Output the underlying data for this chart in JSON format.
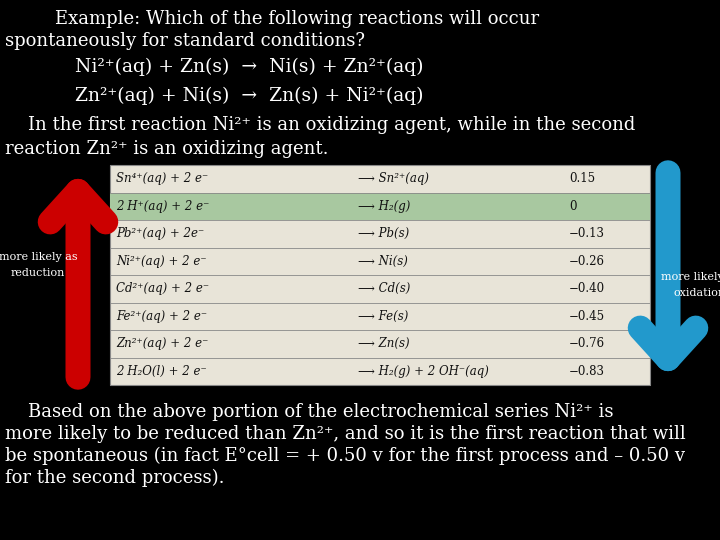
{
  "bg_color": "#000000",
  "text_color": "#ffffff",
  "title_line1": "Example: Which of the following reactions will occur",
  "title_line2": "spontaneously for standard conditions?",
  "reaction1": "Ni²⁺(aq) + Zn(s)  →  Ni(s) + Zn²⁺(aq)",
  "reaction2": "Zn²⁺(aq) + Ni(s)  →  Zn(s) + Ni²⁺(aq)",
  "middle_text_line1": "    In the first reaction Ni²⁺ is an oxidizing agent, while in the second",
  "middle_text_line2": "reaction Zn²⁺ is an oxidizing agent.",
  "table_rows": [
    [
      "Sn⁴⁺(aq) + 2 e⁻",
      "⟶ Sn²⁺(aq)",
      "0.15"
    ],
    [
      "2 H⁺(aq) + 2 e⁻",
      "⟶ H₂(g)",
      "0"
    ],
    [
      "Pb²⁺(aq) + 2e⁻",
      "⟶ Pb(s)",
      "−0.13"
    ],
    [
      "Ni²⁺(aq) + 2 e⁻",
      "⟶ Ni(s)",
      "−0.26"
    ],
    [
      "Cd²⁺(aq) + 2 e⁻",
      "⟶ Cd(s)",
      "−0.40"
    ],
    [
      "Fe²⁺(aq) + 2 e⁻",
      "⟶ Fe(s)",
      "−0.45"
    ],
    [
      "Zn²⁺(aq) + 2 e⁻",
      "⟶ Zn(s)",
      "−0.76"
    ],
    [
      "2 H₂O(l) + 2 e⁻",
      "⟶ H₂(g) + 2 OH⁻(aq)",
      "−0.83"
    ]
  ],
  "highlighted_row": 1,
  "highlight_color": "#a8c8a0",
  "table_bg": "#e8e4d8",
  "border_color": "#888888",
  "left_arrow_color": "#cc0000",
  "right_arrow_color": "#2299cc",
  "left_label_line1": "more likely as",
  "left_label_line2": "reduction",
  "right_label_line1": "more likely as",
  "right_label_line2": "oxidation",
  "bottom_text_line1": "    Based on the above portion of the electrochemical series Ni²⁺ is",
  "bottom_text_line2": "more likely to be reduced than Zn²⁺, and so it is the first reaction that will",
  "bottom_text_line3": "be spontaneous (in fact E°cell = + 0.50 v for the first process and – 0.50 v",
  "bottom_text_line4": "for the second process)."
}
